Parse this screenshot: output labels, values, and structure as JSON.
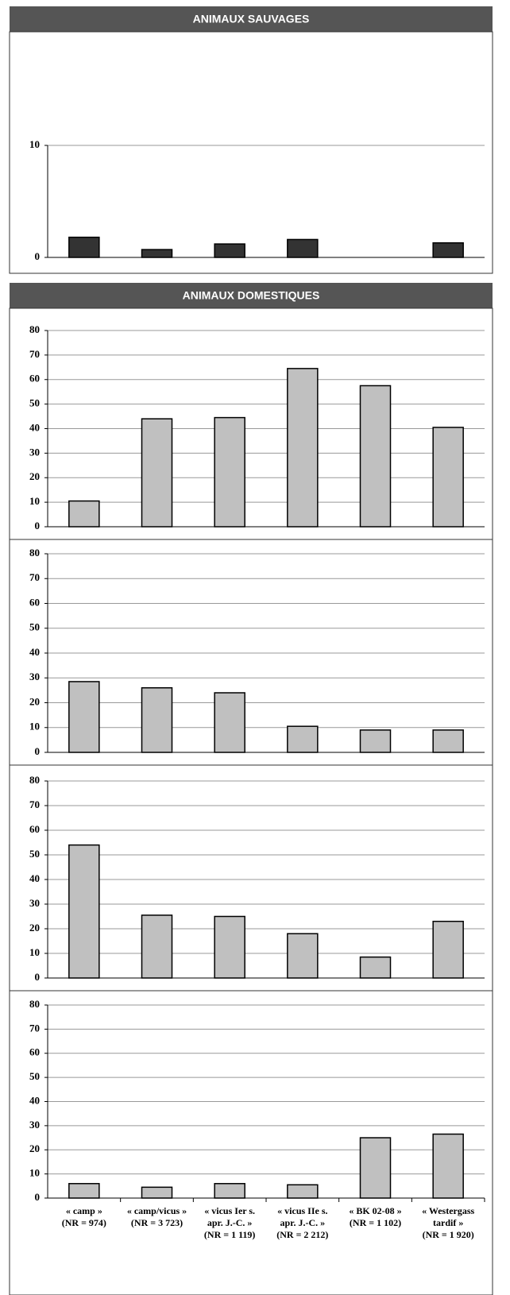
{
  "chart_data": [
    {
      "type": "bar",
      "title": "ANIMAUX SAUVAGES",
      "values": [
        1.8,
        0.7,
        1.2,
        1.6,
        null,
        1.3
      ],
      "color": "#333333",
      "ylim": [
        0,
        10
      ],
      "yticks": [
        0,
        10
      ],
      "grid": true
    },
    {
      "type": "bar",
      "title": "ANIMAUX DOMESTIQUES",
      "values": [
        10.5,
        44,
        44.5,
        64.5,
        57.5,
        40.5
      ],
      "color": "#c0c0c0",
      "ylim": [
        0,
        80
      ],
      "yticks": [
        0,
        10,
        20,
        30,
        40,
        50,
        60,
        70,
        80
      ],
      "grid": true
    },
    {
      "type": "bar",
      "values": [
        28.5,
        26,
        24,
        10.5,
        9,
        9
      ],
      "color": "#c0c0c0",
      "ylim": [
        0,
        80
      ],
      "yticks": [
        0,
        10,
        20,
        30,
        40,
        50,
        60,
        70,
        80
      ],
      "grid": true
    },
    {
      "type": "bar",
      "values": [
        54,
        25.5,
        25,
        18,
        8.5,
        23
      ],
      "color": "#c0c0c0",
      "ylim": [
        0,
        80
      ],
      "yticks": [
        0,
        10,
        20,
        30,
        40,
        50,
        60,
        70,
        80
      ],
      "grid": true
    },
    {
      "type": "bar",
      "categories": [
        [
          "« camp »",
          "(NR = 974)"
        ],
        [
          "« camp/vicus »",
          "(NR = 3 723)"
        ],
        [
          "« vicus Ier s.",
          "apr. J.-C. »",
          "(NR = 1 119)"
        ],
        [
          "« vicus IIe s.",
          "apr. J.-C. »",
          "(NR = 2 212)"
        ],
        [
          "« BK 02-08 »",
          "(NR = 1 102)"
        ],
        [
          "« Westergass",
          "tardif »",
          "(NR = 1 920)"
        ]
      ],
      "values": [
        6,
        4.5,
        6,
        5.5,
        25,
        26.5
      ],
      "color": "#c0c0c0",
      "ylim": [
        0,
        80
      ],
      "yticks": [
        0,
        10,
        20,
        30,
        40,
        50,
        60,
        70,
        80
      ],
      "grid": true
    }
  ]
}
